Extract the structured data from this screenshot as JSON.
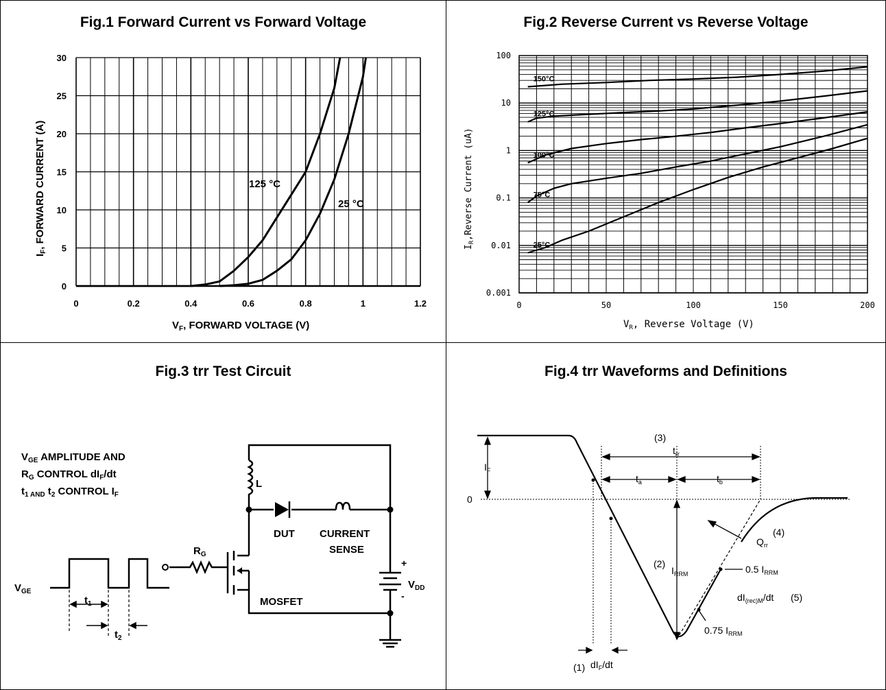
{
  "fig1": {
    "title": "Fig.1  Forward Current vs Forward Voltage",
    "xlabel_main": "V",
    "xlabel_sub": "F",
    "xlabel_rest": ", FORWARD VOLTAGE (V)",
    "ylabel_main": "I",
    "ylabel_sub": "F",
    "ylabel_rest": ", FORWARD CURRENT (A)",
    "xticks": [
      "0",
      "0.2",
      "0.4",
      "0.6",
      "0.8",
      "1",
      "1.2"
    ],
    "yticks": [
      "0",
      "5",
      "10",
      "15",
      "20",
      "25",
      "30"
    ],
    "label_125": "125 °C",
    "label_25": "25 °C"
  },
  "fig2": {
    "title": "Fig.2  Reverse Current vs Reverse Voltage",
    "xlabel_main": "V",
    "xlabel_sub": "R",
    "xlabel_rest": ", Reverse Voltage (V)",
    "ylabel_main": "I",
    "ylabel_sub": "R",
    "ylabel_rest": ",Reverse Current (uA)",
    "xticks": [
      "0",
      "50",
      "100",
      "150",
      "200"
    ],
    "yticks": [
      "0.001",
      "0.01",
      "0.1",
      "1",
      "10",
      "100"
    ],
    "series_labels": [
      "150°C",
      "125°C",
      "100°C",
      "75°C",
      "25°C"
    ]
  },
  "fig3": {
    "title": "Fig.3  trr Test Circuit",
    "note_line1_a": "V",
    "note_line1_sub": "GE",
    "note_line1_b": " AMPLITUDE AND",
    "note_line2_a": "R",
    "note_line2_sub": "G",
    "note_line2_b": " CONTROL dI",
    "note_line2_sub2": "F",
    "note_line2_c": "/dt",
    "note_line3_a": "t",
    "note_line3_sub": "1 AND",
    "note_line3_b": " t",
    "note_line3_sub2": "2",
    "note_line3_c": " CONTROL I",
    "note_line3_sub3": "F",
    "inductor": "L",
    "dut": "DUT",
    "current_sense_1": "CURRENT",
    "current_sense_2": "SENSE",
    "rg_main": "R",
    "rg_sub": "G",
    "mosfet": "MOSFET",
    "vdd_main": "V",
    "vdd_sub": "DD",
    "plus": "+",
    "minus": "-",
    "vge_main": "V",
    "vge_sub": "GE",
    "t1_main": "t",
    "t1_sub": "1",
    "t2_main": "t",
    "t2_sub": "2"
  },
  "fig4": {
    "title": "Fig.4 trr Waveforms and Definitions",
    "zero": "0",
    "if_main": "I",
    "if_sub": "F",
    "n3": "(3)",
    "trr_main": "t",
    "trr_sub": "rr",
    "ta_main": "t",
    "ta_sub": "a",
    "tb_main": "t",
    "tb_sub": "b",
    "n2": "(2)",
    "irrm_main": "I",
    "irrm_sub": "RRM",
    "n4": "(4)",
    "qrr_main": "Q",
    "qrr_sub": "rr",
    "half_a": "0.5 I",
    "half_sub": "RRM",
    "dirr_a": "dI",
    "dirr_sub": "(rec)M",
    "dirr_b": "/dt",
    "n5": "(5)",
    "q75_a": "0.75 I",
    "q75_sub": "RRM",
    "n1": "(1)",
    "dif_a": "dI",
    "dif_sub": "F",
    "dif_b": "/dt"
  },
  "chart_data": [
    {
      "type": "line",
      "title": "Fig.1  Forward Current vs Forward Voltage",
      "xlabel": "VF, FORWARD VOLTAGE (V)",
      "ylabel": "IF, FORWARD CURRENT (A)",
      "xlim": [
        0,
        1.2
      ],
      "ylim": [
        0,
        30
      ],
      "grid": true,
      "series": [
        {
          "name": "125 °C",
          "x": [
            0.4,
            0.45,
            0.5,
            0.55,
            0.6,
            0.65,
            0.7,
            0.75,
            0.8,
            0.85,
            0.9,
            0.92
          ],
          "y": [
            0,
            0.2,
            0.6,
            2.0,
            3.8,
            6.0,
            9.0,
            12.0,
            15.0,
            20.0,
            26.0,
            30.0
          ]
        },
        {
          "name": "25 °C",
          "x": [
            0.5,
            0.55,
            0.6,
            0.65,
            0.7,
            0.75,
            0.8,
            0.85,
            0.9,
            0.95,
            1.0,
            1.01
          ],
          "y": [
            0,
            0.1,
            0.3,
            0.8,
            2.0,
            3.5,
            6.0,
            9.5,
            14.0,
            20.0,
            27.5,
            30.0
          ]
        }
      ]
    },
    {
      "type": "line",
      "title": "Fig.2  Reverse Current vs Reverse Voltage",
      "xlabel": "VR, Reverse Voltage (V)",
      "ylabel": "IR,Reverse Current (uA)",
      "xlim": [
        0,
        200
      ],
      "ylim": [
        0.001,
        100
      ],
      "yscale": "log",
      "grid": true,
      "series": [
        {
          "name": "150°C",
          "x": [
            5,
            25,
            50,
            75,
            100,
            125,
            150,
            175,
            200
          ],
          "y": [
            22,
            25,
            27,
            30,
            32,
            35,
            40,
            47,
            58
          ]
        },
        {
          "name": "125°C",
          "x": [
            5,
            10,
            20,
            40,
            60,
            80,
            100,
            125,
            150,
            175,
            200
          ],
          "y": [
            4,
            4.8,
            5.3,
            5.8,
            6.3,
            6.8,
            7.5,
            9,
            11,
            14,
            18
          ]
        },
        {
          "name": "100°C",
          "x": [
            5,
            15,
            30,
            50,
            70,
            90,
            110,
            130,
            150,
            170,
            200
          ],
          "y": [
            0.55,
            0.8,
            1.1,
            1.4,
            1.7,
            2.0,
            2.4,
            3.0,
            3.7,
            4.6,
            6.5
          ]
        },
        {
          "name": "75°C",
          "x": [
            5,
            10,
            20,
            30,
            50,
            70,
            90,
            110,
            130,
            150,
            175,
            200
          ],
          "y": [
            0.08,
            0.11,
            0.16,
            0.2,
            0.26,
            0.33,
            0.45,
            0.6,
            0.85,
            1.2,
            2.0,
            3.5
          ]
        },
        {
          "name": "25°C",
          "x": [
            5,
            15,
            25,
            40,
            60,
            80,
            100,
            120,
            140,
            160,
            180,
            200
          ],
          "y": [
            0.007,
            0.009,
            0.013,
            0.02,
            0.04,
            0.08,
            0.15,
            0.27,
            0.45,
            0.7,
            1.1,
            1.8
          ]
        }
      ]
    }
  ]
}
